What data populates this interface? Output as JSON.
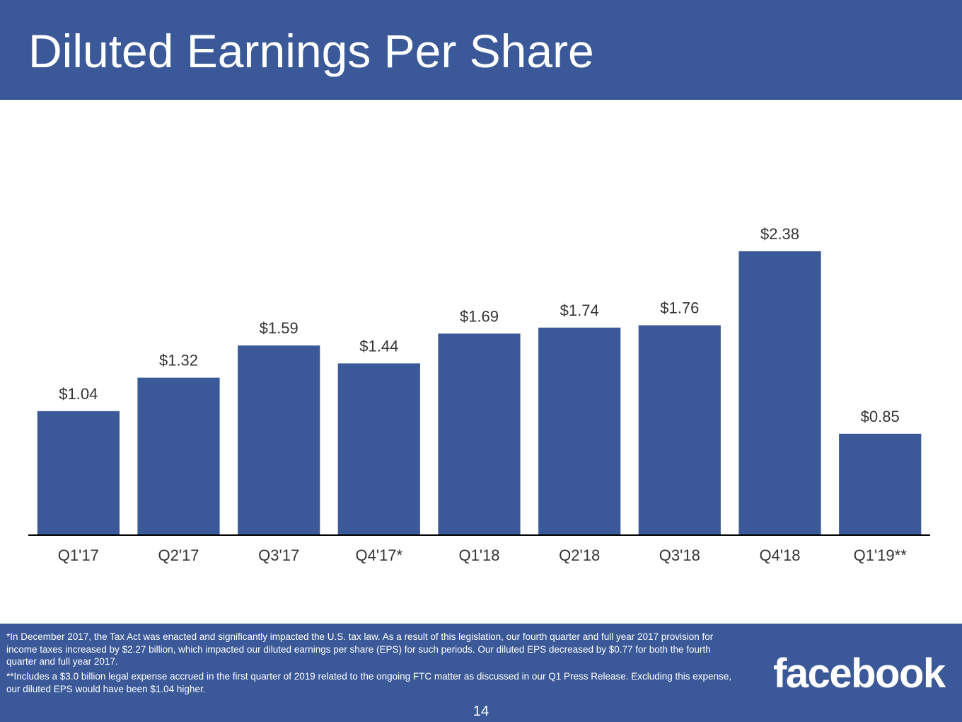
{
  "slide": {
    "title": "Diluted Earnings Per Share",
    "page_number": "14",
    "brand": "facebook",
    "colors": {
      "brand_blue": "#3b5998",
      "bar": "#3b5998",
      "label_text": "#333333",
      "background": "#ffffff"
    }
  },
  "footnotes": [
    "*In December 2017, the Tax Act was enacted and significantly impacted the U.S. tax law. As a result of this legislation, our fourth quarter and full year 2017 provision for income taxes increased by $2.27 billion, which impacted our diluted earnings per share (EPS) for such periods. Our diluted EPS decreased by $0.77 for both the fourth quarter and full year 2017.",
    "**Includes a $3.0 billion legal expense accrued in the first quarter of 2019 related to the ongoing FTC matter as discussed in our Q1 Press Release. Excluding this expense, our diluted EPS would have been $1.04 higher."
  ],
  "chart_data": {
    "type": "bar",
    "title": "Diluted Earnings Per Share",
    "categories": [
      "Q1'17",
      "Q2'17",
      "Q3'17",
      "Q4'17*",
      "Q1'18",
      "Q2'18",
      "Q3'18",
      "Q4'18",
      "Q1'19**"
    ],
    "values": [
      1.04,
      1.32,
      1.59,
      1.44,
      1.69,
      1.74,
      1.76,
      2.38,
      0.85
    ],
    "data_labels": [
      "$1.04",
      "$1.32",
      "$1.59",
      "$1.44",
      "$1.69",
      "$1.74",
      "$1.76",
      "$2.38",
      "$0.85"
    ],
    "xlabel": "",
    "ylabel": "",
    "ylim": [
      0,
      2.38
    ],
    "grid": false,
    "legend": "none",
    "y_axis_shown": false
  }
}
